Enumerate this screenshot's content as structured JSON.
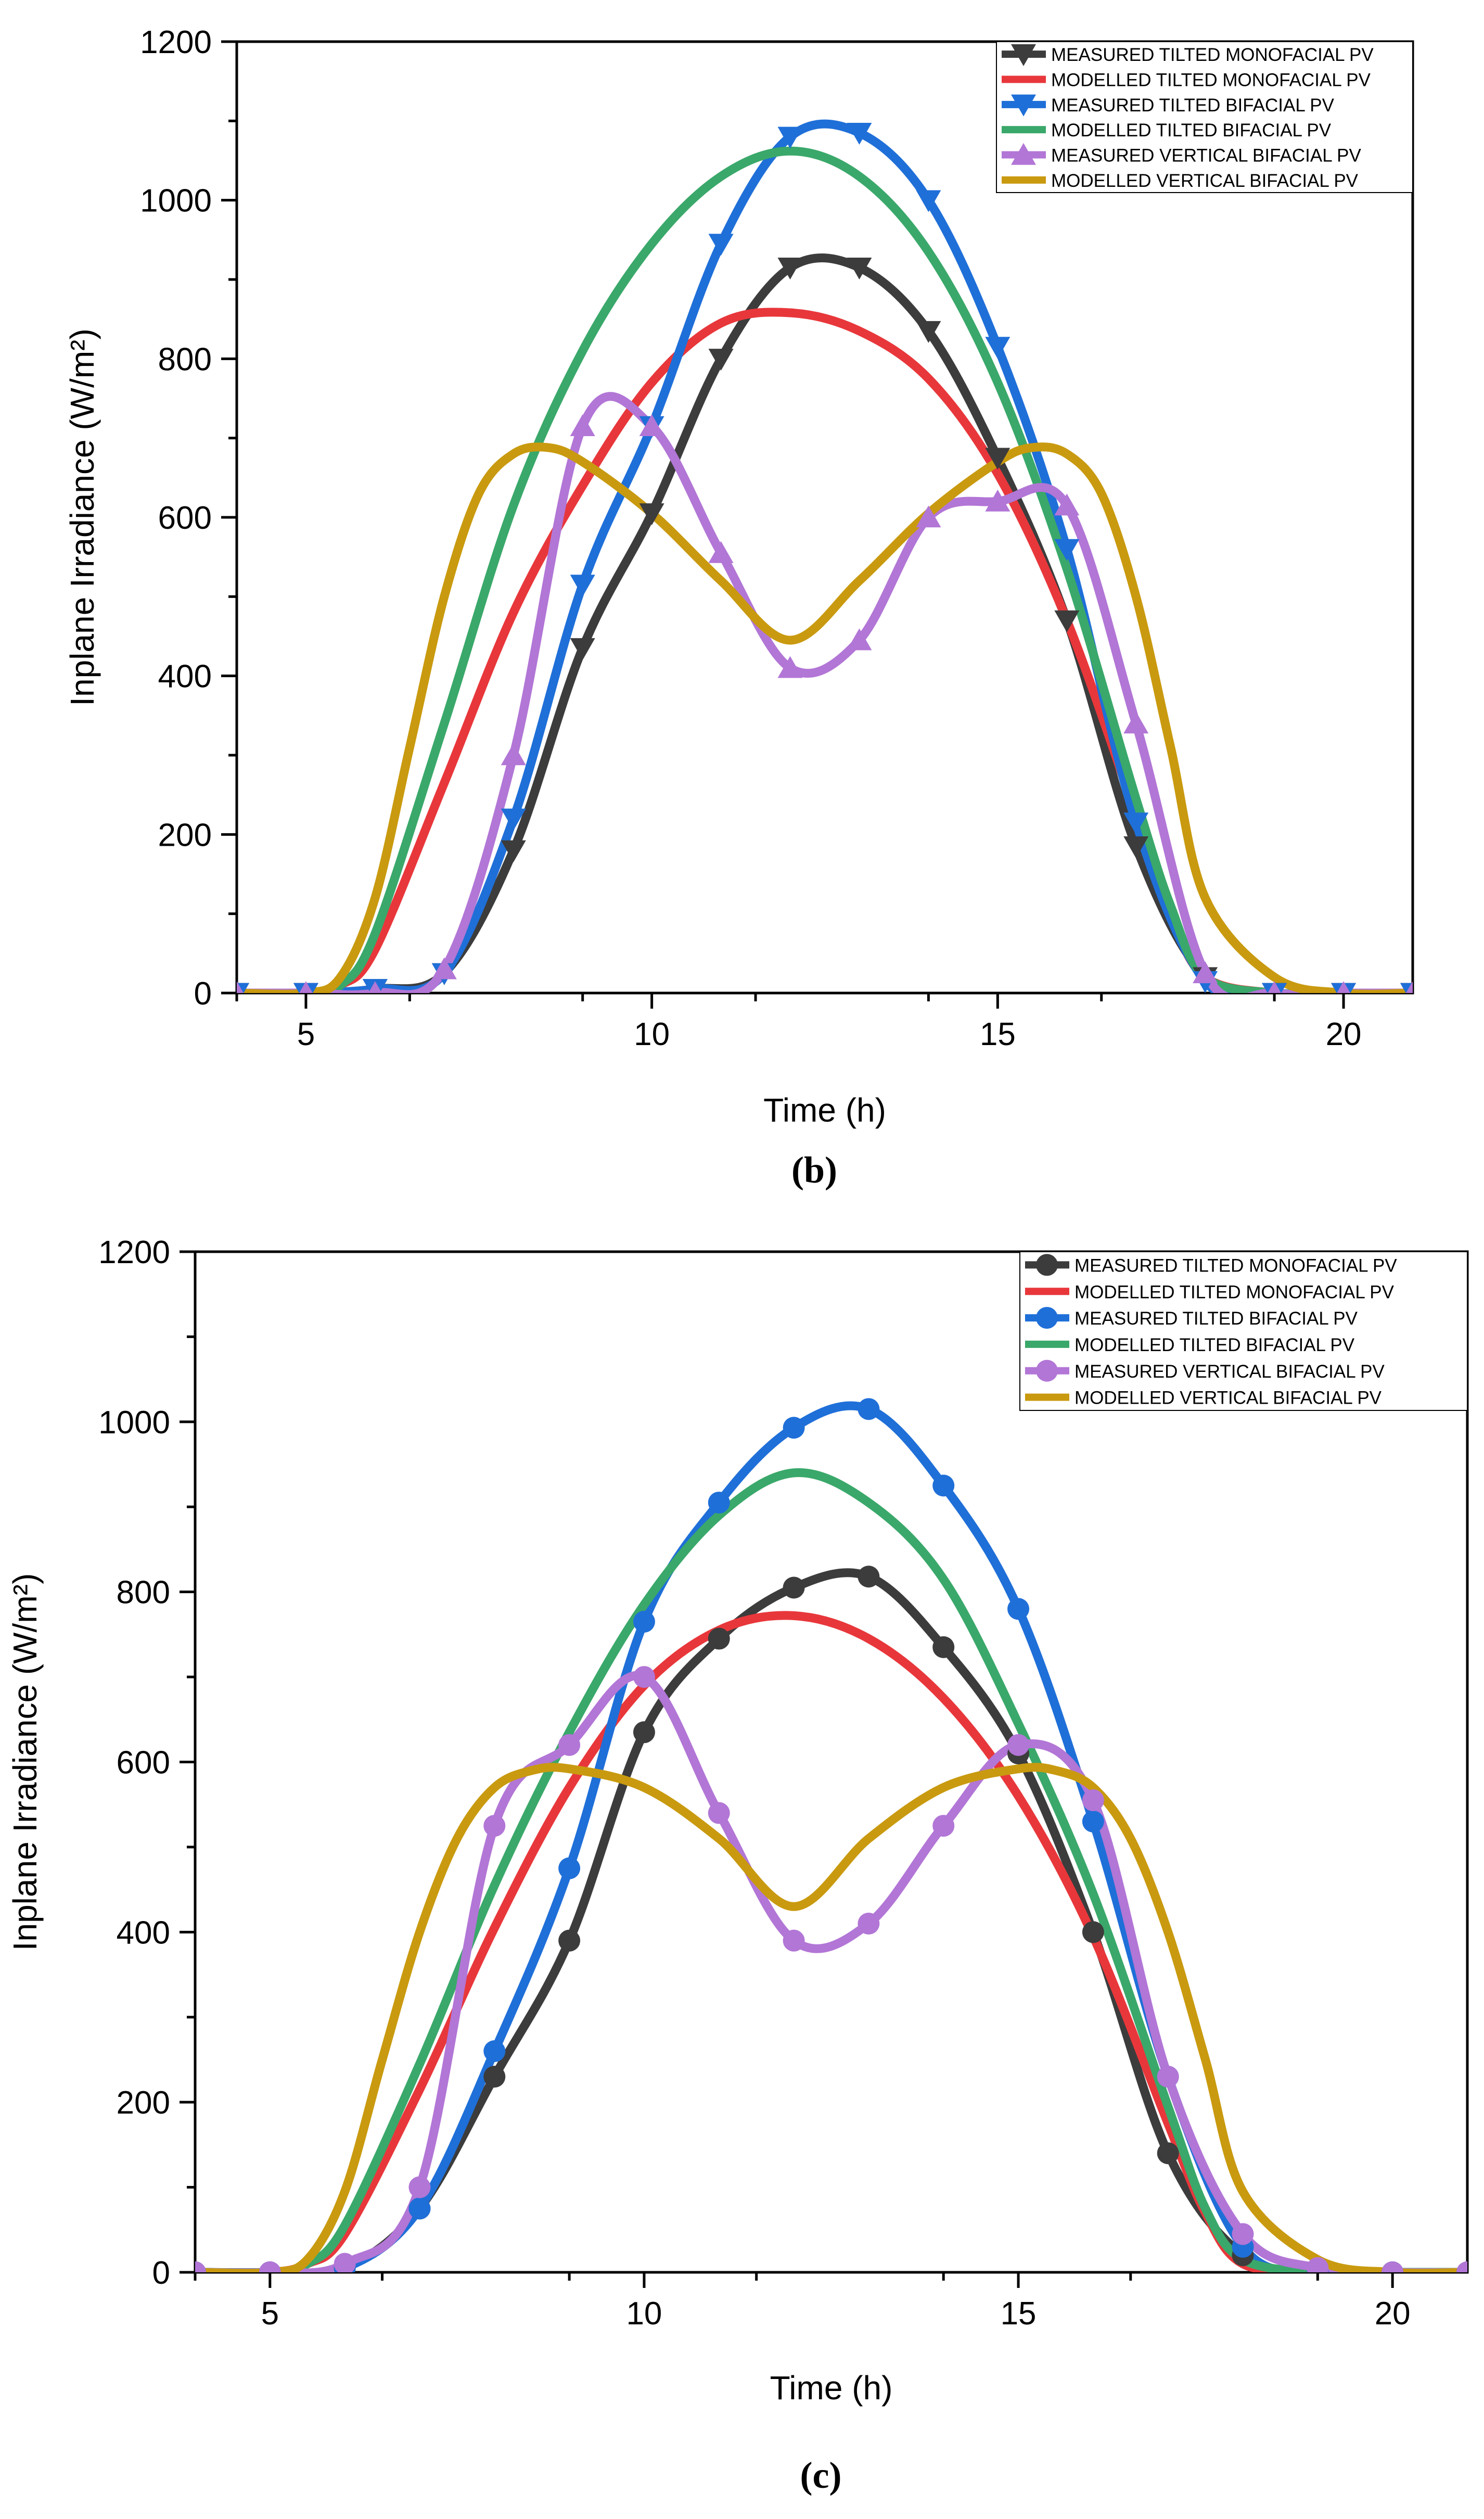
{
  "chart_data": [
    {
      "type": "line",
      "panel_label": "(b)",
      "marker": "triangle-down",
      "xlabel": "Time (h)",
      "ylabel": "Inplane Irradiance (W/m²)",
      "xlim": [
        4,
        21
      ],
      "ylim": [
        0,
        1200
      ],
      "xticks": [
        "5",
        "10",
        "15",
        "20"
      ],
      "yticks": [
        "0",
        "200",
        "400",
        "600",
        "800",
        "1000",
        "1200"
      ],
      "legend_position": "top-right",
      "series": [
        {
          "name": "MEASURED TILTED MONOFACIAL PV",
          "color": "#3c3c3c",
          "marker": "triangle-down",
          "x": [
            4,
            5,
            6,
            7,
            8,
            9,
            10,
            11,
            12,
            13,
            14,
            15,
            16,
            17,
            18,
            19,
            20,
            21
          ],
          "y": [
            0,
            0,
            5,
            25,
            180,
            435,
            605,
            800,
            915,
            915,
            835,
            675,
            470,
            185,
            20,
            0,
            0,
            0
          ]
        },
        {
          "name": "MODELLED TILTED MONOFACIAL PV",
          "color": "#e8373b",
          "x": [
            4,
            5,
            5.5,
            6,
            7,
            8,
            9,
            10,
            11,
            12,
            13,
            14,
            15,
            16,
            17,
            17.5,
            18,
            19,
            20,
            21
          ],
          "y": [
            0,
            0,
            10,
            55,
            265,
            480,
            640,
            770,
            845,
            858,
            835,
            775,
            655,
            470,
            225,
            100,
            20,
            0,
            0,
            0
          ]
        },
        {
          "name": "MEASURED TILTED BIFACIAL PV",
          "color": "#1f6fd8",
          "marker": "triangle-down",
          "x": [
            4,
            5,
            6,
            7,
            8,
            9,
            10,
            11,
            12,
            13,
            14,
            15,
            16,
            17,
            18,
            19,
            20,
            21
          ],
          "y": [
            0,
            0,
            5,
            25,
            220,
            515,
            715,
            945,
            1080,
            1085,
            1000,
            815,
            560,
            215,
            15,
            0,
            0,
            0
          ]
        },
        {
          "name": "MODELLED TILTED BIFACIAL PV",
          "color": "#3aa86a",
          "x": [
            4,
            5,
            5.5,
            6,
            7,
            8,
            9,
            10,
            11,
            12,
            13,
            14,
            15,
            16,
            17,
            17.5,
            18,
            19,
            20,
            21
          ],
          "y": [
            0,
            0,
            10,
            75,
            340,
            615,
            810,
            945,
            1030,
            1062,
            1030,
            935,
            770,
            535,
            245,
            110,
            20,
            0,
            0,
            0
          ]
        },
        {
          "name": "MEASURED VERTICAL BIFACIAL PV",
          "color": "#b276d6",
          "marker": "triangle-up",
          "x": [
            4,
            5,
            6,
            7,
            8,
            9,
            10,
            11,
            12,
            13,
            14,
            15,
            16,
            17,
            18,
            19,
            20,
            21
          ],
          "y": [
            0,
            0,
            0,
            30,
            300,
            715,
            715,
            555,
            410,
            445,
            600,
            620,
            615,
            340,
            25,
            0,
            0,
            0
          ]
        },
        {
          "name": "MODELLED VERTICAL BIFACIAL PV",
          "color": "#c99a0f",
          "x": [
            4,
            5,
            5.5,
            6,
            6.5,
            7,
            7.5,
            8,
            8.5,
            9,
            10,
            11,
            12,
            13,
            14,
            15,
            15.5,
            16,
            16.5,
            17,
            17.5,
            18,
            19,
            20,
            21
          ],
          "y": [
            0,
            0,
            20,
            120,
            310,
            500,
            630,
            680,
            688,
            670,
            605,
            520,
            445,
            520,
            605,
            670,
            688,
            680,
            630,
            500,
            310,
            120,
            20,
            0,
            0
          ]
        }
      ]
    },
    {
      "type": "line",
      "panel_label": "(c)",
      "marker": "circle",
      "xlabel": "Time (h)",
      "ylabel": "Inplane Irradiance (W/m²)",
      "xlim": [
        4,
        21
      ],
      "ylim": [
        0,
        1200
      ],
      "xticks": [
        "5",
        "10",
        "15",
        "20"
      ],
      "yticks": [
        "0",
        "200",
        "400",
        "600",
        "800",
        "1000",
        "1200"
      ],
      "legend_position": "top-right",
      "series": [
        {
          "name": "MEASURED TILTED MONOFACIAL PV",
          "color": "#3c3c3c",
          "marker": "circle",
          "x": [
            4,
            5,
            6,
            7,
            8,
            9,
            10,
            11,
            12,
            13,
            14,
            15,
            16,
            17,
            18,
            19,
            20,
            21
          ],
          "y": [
            0,
            0,
            5,
            75,
            230,
            390,
            635,
            745,
            805,
            818,
            735,
            610,
            400,
            140,
            20,
            0,
            0,
            0
          ]
        },
        {
          "name": "MODELLED TILTED MONOFACIAL PV",
          "color": "#e8373b",
          "x": [
            4,
            5,
            5.5,
            6,
            7,
            8,
            9,
            10,
            11,
            12,
            13,
            14,
            15,
            16,
            17,
            17.5,
            18,
            19,
            20,
            21
          ],
          "y": [
            0,
            0,
            10,
            45,
            215,
            405,
            570,
            690,
            755,
            772,
            745,
            675,
            560,
            395,
            175,
            70,
            10,
            0,
            0,
            0
          ]
        },
        {
          "name": "MEASURED TILTED BIFACIAL PV",
          "color": "#1f6fd8",
          "marker": "circle",
          "x": [
            4,
            5,
            6,
            7,
            8,
            9,
            10,
            11,
            12,
            13,
            14,
            15,
            16,
            17,
            18,
            19,
            20,
            21
          ],
          "y": [
            0,
            0,
            5,
            75,
            260,
            475,
            765,
            905,
            993,
            1015,
            925,
            780,
            530,
            230,
            30,
            0,
            0,
            0
          ]
        },
        {
          "name": "MODELLED TILTED BIFACIAL PV",
          "color": "#3aa86a",
          "x": [
            4,
            5,
            5.5,
            6,
            7,
            8,
            9,
            10,
            11,
            12,
            13,
            14,
            15,
            16,
            17,
            17.5,
            18,
            19,
            20,
            21
          ],
          "y": [
            0,
            0,
            10,
            55,
            245,
            455,
            635,
            785,
            890,
            940,
            905,
            815,
            645,
            445,
            195,
            75,
            15,
            0,
            0,
            0
          ]
        },
        {
          "name": "MEASURED VERTICAL BIFACIAL PV",
          "color": "#b276d6",
          "marker": "circle",
          "x": [
            4,
            5,
            6,
            7,
            8,
            9,
            10,
            11,
            12,
            13,
            14,
            15,
            16,
            17,
            18,
            19,
            20,
            21
          ],
          "y": [
            0,
            0,
            10,
            100,
            525,
            620,
            700,
            540,
            390,
            410,
            525,
            620,
            555,
            230,
            45,
            5,
            0,
            0
          ]
        },
        {
          "name": "MODELLED VERTICAL BIFACIAL PV",
          "color": "#c99a0f",
          "x": [
            4,
            5,
            5.5,
            6,
            6.5,
            7,
            7.5,
            8,
            8.5,
            9,
            10,
            11,
            12,
            13,
            14,
            15,
            15.5,
            16,
            16.5,
            17,
            17.5,
            18,
            19,
            20,
            21
          ],
          "y": [
            0,
            0,
            15,
            95,
            250,
            400,
            510,
            570,
            590,
            592,
            570,
            510,
            430,
            510,
            570,
            592,
            590,
            570,
            510,
            400,
            250,
            95,
            15,
            0,
            0
          ]
        }
      ]
    }
  ]
}
